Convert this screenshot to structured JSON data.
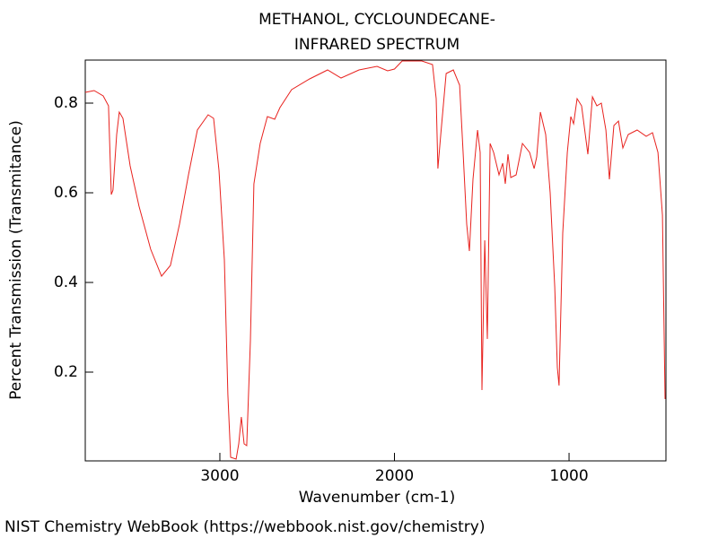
{
  "chart_data": {
    "type": "line",
    "title": [
      "METHANOL, CYCLOUNDECANE-",
      "INFRARED SPECTRUM"
    ],
    "x_label": "Wavenumber (cm-1)",
    "y_label": "Percent Transmission (Transmitance)",
    "footer": "NIST Chemistry WebBook (https://webbook.nist.gov/chemistry)",
    "color": "#e8221e",
    "xlim": [
      3771,
      445
    ],
    "ylim": [
      0.002,
      0.896
    ],
    "xticks": [
      3000,
      2000,
      1000
    ],
    "yticks": [
      0.2,
      0.4,
      0.6,
      0.8
    ],
    "x": [
      3771,
      3720,
      3668,
      3638,
      3622,
      3612,
      3591,
      3576,
      3555,
      3514,
      3463,
      3396,
      3334,
      3283,
      3231,
      3180,
      3129,
      3067,
      3036,
      3005,
      2974,
      2954,
      2938,
      2907,
      2892,
      2877,
      2861,
      2846,
      2825,
      2805,
      2769,
      2728,
      2686,
      2656,
      2589,
      2486,
      2383,
      2306,
      2203,
      2100,
      2039,
      2000,
      1956,
      1843,
      1782,
      1761,
      1751,
      1735,
      1704,
      1663,
      1627,
      1607,
      1586,
      1571,
      1550,
      1524,
      1509,
      1499,
      1483,
      1468,
      1452,
      1432,
      1401,
      1380,
      1365,
      1350,
      1334,
      1303,
      1267,
      1226,
      1200,
      1185,
      1164,
      1134,
      1108,
      1082,
      1067,
      1057,
      1036,
      1010,
      990,
      974,
      954,
      928,
      892,
      866,
      841,
      815,
      789,
      769,
      743,
      717,
      692,
      661,
      610,
      558,
      522,
      491,
      465,
      450
    ],
    "values": [
      0.824,
      0.828,
      0.816,
      0.794,
      0.596,
      0.606,
      0.73,
      0.78,
      0.766,
      0.66,
      0.57,
      0.474,
      0.414,
      0.438,
      0.53,
      0.64,
      0.74,
      0.774,
      0.766,
      0.65,
      0.45,
      0.15,
      0.01,
      0.006,
      0.04,
      0.1,
      0.04,
      0.036,
      0.27,
      0.62,
      0.71,
      0.77,
      0.764,
      0.79,
      0.83,
      0.854,
      0.874,
      0.856,
      0.874,
      0.882,
      0.872,
      0.876,
      0.894,
      0.894,
      0.886,
      0.81,
      0.654,
      0.73,
      0.866,
      0.874,
      0.84,
      0.69,
      0.53,
      0.47,
      0.63,
      0.74,
      0.69,
      0.16,
      0.494,
      0.274,
      0.71,
      0.69,
      0.64,
      0.666,
      0.62,
      0.686,
      0.634,
      0.64,
      0.71,
      0.69,
      0.654,
      0.68,
      0.78,
      0.73,
      0.6,
      0.39,
      0.21,
      0.17,
      0.51,
      0.69,
      0.77,
      0.754,
      0.81,
      0.794,
      0.686,
      0.814,
      0.794,
      0.8,
      0.74,
      0.63,
      0.75,
      0.76,
      0.7,
      0.73,
      0.74,
      0.726,
      0.734,
      0.69,
      0.55,
      0.14
    ]
  }
}
